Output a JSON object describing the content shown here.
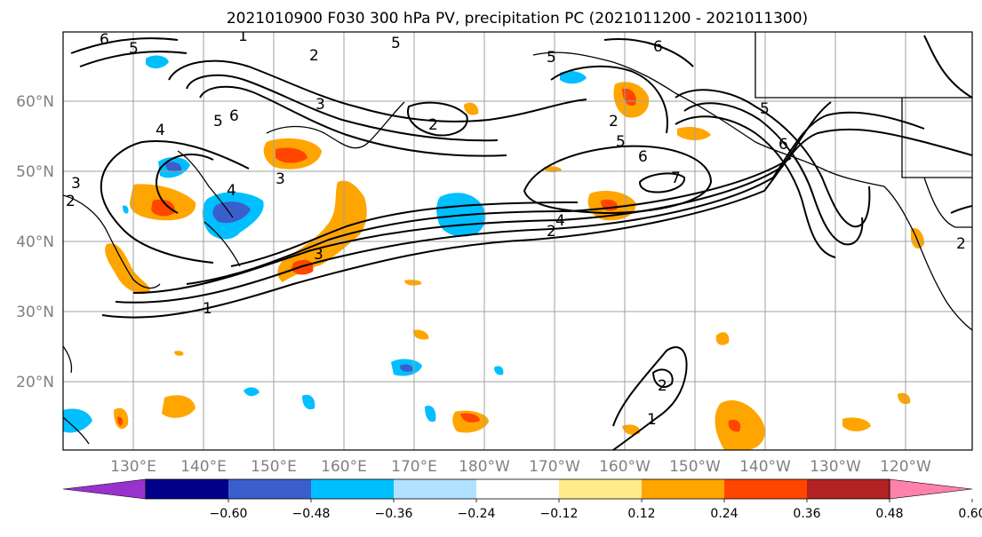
{
  "title": "2021010900 F030 300 hPa PV, precipitation PC (2021011200 - 2021011300)",
  "lat_labels": [
    "60°N",
    "50°N",
    "40°N",
    "30°N",
    "20°N"
  ],
  "lon_labels": [
    "130°E",
    "140°E",
    "150°E",
    "160°E",
    "170°E",
    "180°W",
    "170°W",
    "160°W",
    "150°W",
    "140°W",
    "130°W",
    "120°W"
  ],
  "colorbar": {
    "ticks": [
      "−0.60",
      "−0.48",
      "−0.36",
      "−0.24",
      "−0.12",
      "0.12",
      "0.24",
      "0.36",
      "0.48",
      "0.60"
    ],
    "colors": [
      "#9932cc",
      "#00008b",
      "#3a5fcd",
      "#00bfff",
      "#b0e2ff",
      "#ffffff",
      "#ffec8b",
      "#ffa500",
      "#ff4500",
      "#b22222",
      "#ff82ab"
    ]
  },
  "contour_labels": [
    "1",
    "2",
    "3",
    "4",
    "5",
    "6",
    "7"
  ],
  "colors": {
    "grid": "#a0a0a0",
    "contour": "#000000",
    "coast": "#000000"
  }
}
